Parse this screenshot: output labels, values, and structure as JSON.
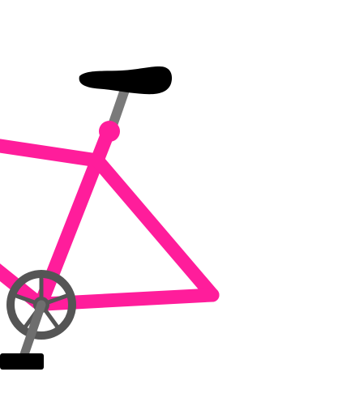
{
  "image": {
    "subject": "bicycle",
    "background_color": "#ffffff",
    "colors": {
      "frame": "#ff1d9b",
      "seat": "#000000",
      "seat_post": "#7a7a7a",
      "chainring": "#555555",
      "crank_arm": "#6e6e6e",
      "pedal": "#000000"
    }
  }
}
